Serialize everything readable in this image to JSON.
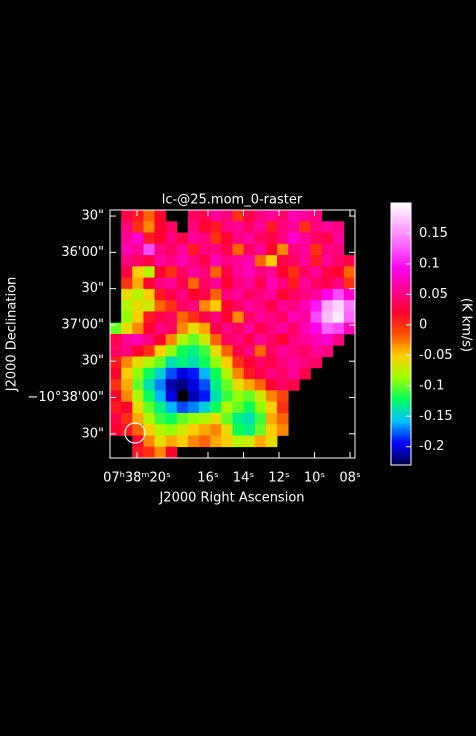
{
  "chart_data": {
    "type": "heatmap",
    "title": "lc-@25.mom_0-raster",
    "x_label": "J2000 Right Ascension",
    "y_label": "J2000 Declination",
    "colorbar_label": "(K km/s)",
    "xlim": [
      21.52,
      7.72
    ],
    "xticks": [
      {
        "value": 20,
        "label": "07ʰ38ᵐ20ˢ"
      },
      {
        "value": 16,
        "label": "16ˢ"
      },
      {
        "value": 14,
        "label": "14ˢ"
      },
      {
        "value": 12,
        "label": "12ˢ"
      },
      {
        "value": 10,
        "label": "10ˢ"
      },
      {
        "value": 8,
        "label": "08ˢ"
      }
    ],
    "ylim": [
      2330,
      2125
    ],
    "yticks": [
      {
        "value": 2130,
        "label": "30\""
      },
      {
        "value": 2160,
        "label": "36'00\""
      },
      {
        "value": 2190,
        "label": "30\""
      },
      {
        "value": 2220,
        "label": "37'00\""
      },
      {
        "value": 2250,
        "label": "30\""
      },
      {
        "value": 2280,
        "label": "−10°38'00\""
      },
      {
        "value": 2310,
        "label": "30\""
      }
    ],
    "clim": [
      -0.23,
      0.2
    ],
    "cticks": [
      0.15,
      0.1,
      0.05,
      0,
      -0.05,
      -0.1,
      -0.15,
      -0.2
    ],
    "colormap": [
      "#00004a",
      "#0000ff",
      "#00c0ff",
      "#00ff60",
      "#a0ff00",
      "#ffd000",
      "#ff5000",
      "#ff0030",
      "#ff0090",
      "#ff00f0",
      "#ff60ff",
      "#ffb0ff",
      "#ffffff"
    ],
    "z": [
      [
        null,
        0.03,
        0.01,
        -0.02,
        0.02,
        null,
        null,
        0.04,
        0.03,
        0.06,
        0.05,
        0.0,
        0.03,
        0.05,
        0.06,
        0.04,
        0.07,
        0.06,
        0.05,
        null,
        null,
        null
      ],
      [
        null,
        0.05,
        0.0,
        -0.03,
        0.02,
        0.04,
        null,
        0.05,
        0.02,
        0.01,
        0.05,
        0.06,
        0.04,
        0.06,
        0.01,
        0.05,
        0.06,
        0.0,
        0.05,
        0.06,
        0.05,
        null
      ],
      [
        null,
        0.06,
        0.08,
        0.01,
        0.02,
        0.05,
        0.03,
        0.06,
        0.05,
        0.0,
        0.02,
        0.05,
        0.06,
        0.04,
        0.03,
        0.05,
        0.08,
        0.06,
        0.04,
        0.03,
        0.06,
        null
      ],
      [
        null,
        0.07,
        0.06,
        0.12,
        0.05,
        0.04,
        0.06,
        0.01,
        0.05,
        0.05,
        0.03,
        -0.02,
        0.04,
        0.06,
        0.02,
        -0.03,
        0.05,
        0.06,
        0.0,
        0.05,
        0.05,
        null
      ],
      [
        null,
        0.05,
        0.04,
        0.03,
        0.06,
        0.05,
        0.07,
        0.05,
        0.03,
        0.07,
        0.05,
        0.06,
        0.07,
        -0.02,
        -0.05,
        0.03,
        0.04,
        0.06,
        0.01,
        0.06,
        0.04,
        0.03
      ],
      [
        null,
        0.03,
        -0.05,
        -0.08,
        0.02,
        0.0,
        0.04,
        0.06,
        0.05,
        -0.02,
        0.03,
        0.06,
        0.07,
        0.05,
        0.06,
        0.02,
        0.0,
        0.04,
        0.06,
        0.03,
        0.02,
        -0.02
      ],
      [
        null,
        0.0,
        -0.04,
        0.02,
        0.05,
        0.06,
        0.03,
        -0.02,
        0.04,
        0.06,
        0.02,
        0.05,
        0.06,
        0.03,
        0.07,
        0.05,
        0.01,
        0.06,
        0.04,
        0.03,
        0.05,
        0.0
      ],
      [
        null,
        -0.06,
        -0.08,
        -0.05,
        0.01,
        0.03,
        0.05,
        0.02,
        0.03,
        -0.02,
        0.05,
        0.06,
        0.04,
        0.05,
        0.06,
        0.02,
        0.04,
        0.05,
        0.06,
        0.09,
        0.12,
        0.08
      ],
      [
        null,
        -0.08,
        -0.06,
        -0.07,
        -0.02,
        0.0,
        0.04,
        0.05,
        -0.03,
        -0.05,
        0.02,
        0.04,
        0.06,
        0.05,
        0.03,
        0.06,
        0.05,
        0.07,
        0.1,
        0.16,
        0.18,
        0.14
      ],
      [
        null,
        -0.09,
        -0.05,
        0.01,
        0.03,
        0.04,
        -0.02,
        0.0,
        0.03,
        0.05,
        0.02,
        -0.03,
        0.04,
        0.06,
        0.05,
        0.04,
        0.07,
        0.06,
        0.12,
        0.17,
        0.19,
        0.13
      ],
      [
        -0.1,
        -0.06,
        -0.03,
        0.02,
        0.05,
        0.04,
        -0.03,
        -0.06,
        -0.04,
        0.03,
        0.05,
        0.04,
        0.06,
        0.03,
        0.05,
        0.06,
        0.04,
        0.07,
        0.09,
        0.13,
        0.12,
        0.07
      ],
      [
        0.03,
        0.06,
        0.07,
        0.05,
        0.02,
        -0.03,
        -0.08,
        -0.1,
        -0.07,
        -0.02,
        0.04,
        0.05,
        0.03,
        0.06,
        0.04,
        0.02,
        0.05,
        0.06,
        0.07,
        0.08,
        0.05,
        null
      ],
      [
        0.04,
        0.05,
        0.02,
        0.0,
        -0.05,
        -0.09,
        -0.12,
        -0.13,
        -0.11,
        -0.06,
        -0.02,
        0.03,
        0.05,
        -0.02,
        0.04,
        0.06,
        0.05,
        0.04,
        0.06,
        0.05,
        null,
        null
      ],
      [
        0.01,
        -0.03,
        -0.06,
        -0.08,
        -0.1,
        -0.14,
        -0.13,
        -0.14,
        -0.12,
        -0.09,
        -0.05,
        0.0,
        0.02,
        0.04,
        0.03,
        0.05,
        0.06,
        0.05,
        0.04,
        null,
        null,
        null
      ],
      [
        0.02,
        -0.05,
        -0.09,
        -0.12,
        -0.15,
        -0.18,
        -0.2,
        -0.19,
        -0.16,
        -0.12,
        -0.08,
        -0.03,
        0.01,
        0.03,
        0.05,
        0.04,
        0.06,
        0.03,
        null,
        null,
        null,
        null
      ],
      [
        0.0,
        -0.04,
        -0.1,
        -0.14,
        -0.17,
        -0.21,
        -0.22,
        -0.2,
        -0.18,
        -0.13,
        -0.1,
        -0.06,
        -0.04,
        -0.02,
        0.02,
        0.04,
        0.03,
        null,
        null,
        null,
        null,
        null
      ],
      [
        0.02,
        -0.03,
        -0.08,
        -0.12,
        -0.16,
        -0.2,
        null,
        -0.21,
        -0.19,
        -0.14,
        -0.11,
        -0.09,
        -0.1,
        -0.07,
        -0.03,
        -0.01,
        null,
        null,
        null,
        null,
        null,
        null
      ],
      [
        0.01,
        0.02,
        -0.06,
        -0.1,
        -0.13,
        -0.16,
        -0.18,
        -0.17,
        -0.15,
        -0.12,
        -0.08,
        -0.1,
        -0.12,
        -0.09,
        -0.05,
        0.0,
        null,
        null,
        null,
        null,
        null,
        null
      ],
      [
        0.03,
        0.0,
        -0.04,
        -0.08,
        -0.11,
        -0.12,
        -0.1,
        -0.09,
        -0.08,
        -0.06,
        -0.1,
        -0.13,
        -0.14,
        -0.11,
        -0.04,
        -0.02,
        null,
        null,
        null,
        null,
        null,
        null
      ],
      [
        0.02,
        0.01,
        -0.02,
        -0.05,
        -0.08,
        -0.09,
        -0.07,
        -0.05,
        -0.04,
        -0.03,
        -0.06,
        -0.12,
        -0.13,
        -0.1,
        -0.05,
        -0.03,
        null,
        null,
        null,
        null,
        null,
        null
      ],
      [
        null,
        null,
        0.02,
        -0.03,
        -0.06,
        -0.04,
        -0.05,
        -0.03,
        -0.02,
        -0.04,
        -0.05,
        -0.08,
        -0.07,
        -0.04,
        -0.06,
        null,
        null,
        null,
        null,
        null,
        null,
        null
      ],
      [
        null,
        null,
        0.01,
        0.0,
        -0.03,
        0.02,
        null,
        null,
        null,
        null,
        null,
        null,
        null,
        null,
        null,
        null,
        null,
        null,
        null,
        null,
        null,
        null
      ]
    ]
  }
}
